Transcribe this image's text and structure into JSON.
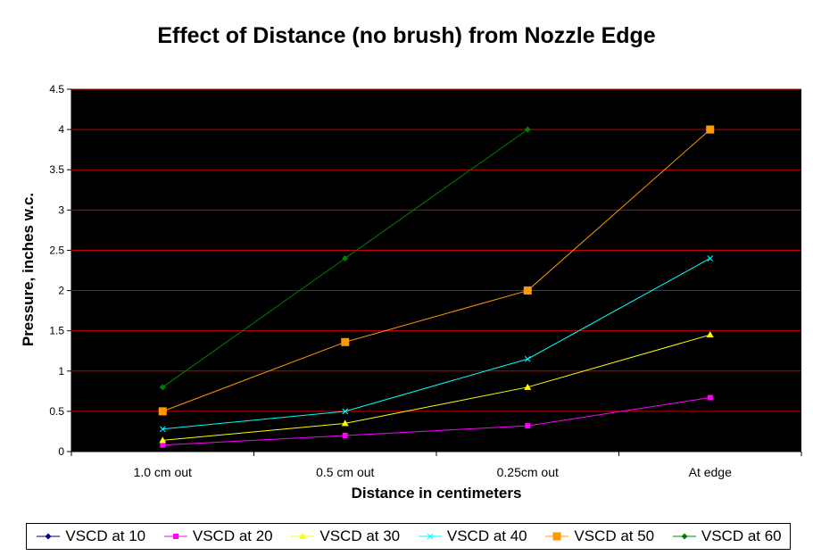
{
  "chart_data": {
    "type": "line",
    "title": "Effect of Distance (no brush) from Nozzle Edge",
    "xlabel": "Distance in centimeters",
    "ylabel": "Pressure, inches w.c.",
    "categories": [
      "1.0 cm out",
      "0.5 cm out",
      "0.25cm out",
      "At edge"
    ],
    "ylim": [
      0,
      4.5
    ],
    "yticks": [
      "0",
      "0.5",
      "1",
      "1.5",
      "2",
      "2.5",
      "3",
      "3.5",
      "4",
      "4.5"
    ],
    "grid": true,
    "legend_position": "bottom",
    "plot_background": "#000000",
    "grid_color": "#cc0000",
    "series": [
      {
        "name": "VSCD at 10",
        "color": "#000080",
        "marker": "diamond",
        "values": [
          null,
          null,
          null,
          null
        ]
      },
      {
        "name": "VSCD at 20",
        "color": "#ff00ff",
        "marker": "square",
        "values": [
          0.08,
          0.2,
          0.32,
          0.67
        ]
      },
      {
        "name": "VSCD at 30",
        "color": "#ffff00",
        "marker": "triangle",
        "values": [
          0.14,
          0.35,
          0.8,
          1.45
        ]
      },
      {
        "name": "VSCD at 40",
        "color": "#00ffff",
        "marker": "x",
        "values": [
          0.28,
          0.5,
          1.15,
          2.4
        ]
      },
      {
        "name": "VSCD at 50",
        "color": "#ff9900",
        "marker": "square-large",
        "values": [
          0.5,
          1.36,
          2.0,
          4.0
        ]
      },
      {
        "name": "VSCD at 60",
        "color": "#008000",
        "marker": "diamond",
        "values": [
          0.8,
          2.4,
          4.0,
          null
        ]
      }
    ]
  }
}
